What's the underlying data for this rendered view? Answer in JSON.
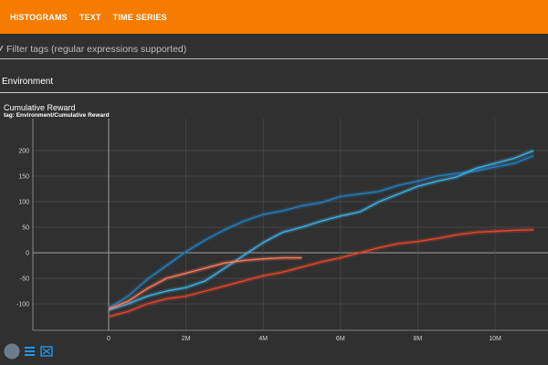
{
  "header": {
    "tabs": [
      {
        "label": "HISTOGRAMS"
      },
      {
        "label": "TEXT"
      },
      {
        "label": "TIME SERIES"
      }
    ],
    "background_color": "#f57c00"
  },
  "filter": {
    "placeholder": "Filter tags (regular expressions supported)",
    "value": ""
  },
  "group": {
    "title": "Environment"
  },
  "card": {
    "title": "Cumulative Reward",
    "tag": "tag: Environment/Cumulative Reward"
  },
  "controls": [
    {
      "icon": "fit-domain-icon"
    },
    {
      "icon": "data-table-icon"
    },
    {
      "icon": "fullscreen-icon"
    }
  ],
  "chart_data": {
    "type": "line",
    "title": "",
    "xlabel": "",
    "ylabel": "",
    "xlim": [
      -2000000,
      11500000
    ],
    "ylim": [
      -150,
      225
    ],
    "x_ticks": [
      0,
      2000000,
      4000000,
      6000000,
      8000000,
      10000000
    ],
    "x_tick_labels": [
      "0",
      "2M",
      "4M",
      "6M",
      "8M",
      "10M"
    ],
    "y_ticks": [
      -100,
      -50,
      0,
      50,
      100,
      150,
      200
    ],
    "y_tick_labels": [
      "-100",
      "-50",
      "0",
      "50",
      "100",
      "150",
      "200"
    ],
    "grid": true,
    "series": [
      {
        "color": "#1f7fc4",
        "x": [
          0,
          500000,
          1000000,
          1500000,
          2000000,
          2500000,
          3000000,
          3500000,
          4000000,
          4500000,
          5000000,
          5500000,
          6000000,
          6500000,
          7000000,
          7500000,
          8000000,
          8500000,
          9000000,
          9500000,
          10000000,
          10500000,
          11000000
        ],
        "y": [
          -108,
          -85,
          -52,
          -25,
          2,
          25,
          45,
          62,
          75,
          82,
          92,
          98,
          110,
          115,
          120,
          132,
          140,
          150,
          155,
          160,
          168,
          175,
          190
        ]
      },
      {
        "color": "#3cb2e6",
        "x": [
          0,
          500000,
          1000000,
          1500000,
          2000000,
          2500000,
          3000000,
          3500000,
          4000000,
          4500000,
          5000000,
          5500000,
          6000000,
          6500000,
          7000000,
          7500000,
          8000000,
          8500000,
          9000000,
          9500000,
          10000000,
          10500000,
          11000000
        ],
        "y": [
          -112,
          -100,
          -85,
          -75,
          -68,
          -55,
          -30,
          -5,
          20,
          40,
          50,
          62,
          72,
          80,
          100,
          115,
          130,
          140,
          148,
          165,
          175,
          185,
          200
        ]
      },
      {
        "color": "#ff7a5a",
        "x": [
          0,
          500000,
          1000000,
          1500000,
          2000000,
          2500000,
          3000000,
          3500000,
          4000000,
          4500000,
          5000000
        ],
        "y": [
          -110,
          -95,
          -70,
          -50,
          -40,
          -30,
          -20,
          -15,
          -12,
          -10,
          -10
        ]
      },
      {
        "color": "#e8452a",
        "x": [
          0,
          500000,
          1000000,
          1500000,
          2000000,
          2500000,
          3000000,
          3500000,
          4000000,
          4500000,
          5000000,
          5500000,
          6000000,
          6500000,
          7000000,
          7500000,
          8000000,
          8500000,
          9000000,
          9500000,
          10000000,
          10500000,
          11000000
        ],
        "y": [
          -125,
          -115,
          -100,
          -90,
          -85,
          -75,
          -65,
          -55,
          -45,
          -38,
          -28,
          -18,
          -10,
          0,
          10,
          18,
          22,
          28,
          35,
          40,
          42,
          44,
          45
        ]
      }
    ]
  }
}
